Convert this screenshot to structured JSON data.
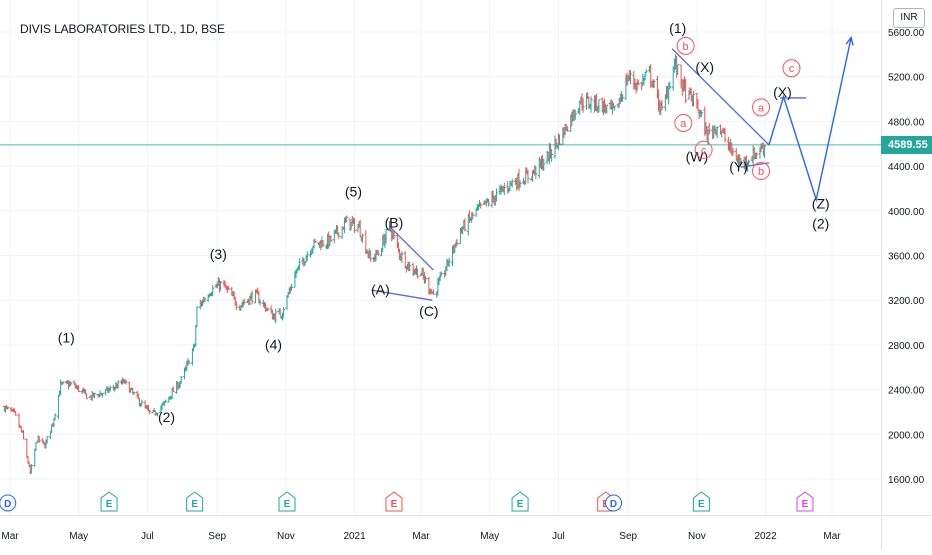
{
  "header": {
    "symbol_title": "DIVIS LABORATORIES LTD., 1D, BSE",
    "currency": "INR"
  },
  "colors": {
    "up": "#26a69a",
    "down": "#ef5350",
    "price_line": "#26a69a",
    "wave_black": "#131722",
    "wave_red": "#f7525f",
    "trendline": "#5b6ad0",
    "projection": "#2962ff",
    "grid": "#f0f3fa",
    "axis_text": "#131722"
  },
  "chart_data": {
    "type": "ohlc",
    "y_scale": "linear",
    "ylim": [
      1200,
      5800
    ],
    "y_ticks": [
      "1600.00",
      "2000.00",
      "2400.00",
      "2800.00",
      "3200.00",
      "3600.00",
      "4000.00",
      "4400.00",
      "4800.00",
      "5200.00",
      "5600.00"
    ],
    "x_ticks": [
      "Mar",
      "May",
      "Jul",
      "Sep",
      "Nov",
      "2021",
      "Mar",
      "May",
      "Jul",
      "Sep",
      "Nov",
      "2022",
      "Mar"
    ],
    "last_price": "4589.55",
    "price_anchors": [
      [
        "2020-02-25",
        2240
      ],
      [
        "2020-03-05",
        2180
      ],
      [
        "2020-03-12",
        2000
      ],
      [
        "2020-03-19",
        1650
      ],
      [
        "2020-03-25",
        1960
      ],
      [
        "2020-04-01",
        1900
      ],
      [
        "2020-04-08",
        2100
      ],
      [
        "2020-04-15",
        2440
      ],
      [
        "2020-04-25",
        2450
      ],
      [
        "2020-05-10",
        2330
      ],
      [
        "2020-05-25",
        2380
      ],
      [
        "2020-06-10",
        2470
      ],
      [
        "2020-06-25",
        2280
      ],
      [
        "2020-07-05",
        2170
      ],
      [
        "2020-07-15",
        2260
      ],
      [
        "2020-08-01",
        2500
      ],
      [
        "2020-08-12",
        2800
      ],
      [
        "2020-08-14",
        3120
      ],
      [
        "2020-08-25",
        3280
      ],
      [
        "2020-09-05",
        3350
      ],
      [
        "2020-09-20",
        3150
      ],
      [
        "2020-10-05",
        3250
      ],
      [
        "2020-10-20",
        3060
      ],
      [
        "2020-10-28",
        3080
      ],
      [
        "2020-11-10",
        3450
      ],
      [
        "2020-11-25",
        3700
      ],
      [
        "2020-12-10",
        3730
      ],
      [
        "2020-12-25",
        3900
      ],
      [
        "2021-01-05",
        3850
      ],
      [
        "2021-01-15",
        3560
      ],
      [
        "2021-01-22",
        3620
      ],
      [
        "2021-02-01",
        3860
      ],
      [
        "2021-02-10",
        3620
      ],
      [
        "2021-02-18",
        3500
      ],
      [
        "2021-03-01",
        3440
      ],
      [
        "2021-03-12",
        3250
      ],
      [
        "2021-03-22",
        3460
      ],
      [
        "2021-04-05",
        3820
      ],
      [
        "2021-04-20",
        4000
      ],
      [
        "2021-05-05",
        4120
      ],
      [
        "2021-05-20",
        4250
      ],
      [
        "2021-06-05",
        4310
      ],
      [
        "2021-06-20",
        4460
      ],
      [
        "2021-07-05",
        4700
      ],
      [
        "2021-07-20",
        4980
      ],
      [
        "2021-08-05",
        4960
      ],
      [
        "2021-08-20",
        4880
      ],
      [
        "2021-09-01",
        5200
      ],
      [
        "2021-09-10",
        5120
      ],
      [
        "2021-09-20",
        5230
      ],
      [
        "2021-10-01",
        4880
      ],
      [
        "2021-10-12",
        5320
      ],
      [
        "2021-10-22",
        5050
      ],
      [
        "2021-11-01",
        4950
      ],
      [
        "2021-11-10",
        4680
      ],
      [
        "2021-11-20",
        4770
      ],
      [
        "2021-11-30",
        4560
      ],
      [
        "2021-12-10",
        4420
      ],
      [
        "2021-12-20",
        4490
      ],
      [
        "2022-01-01",
        4590
      ]
    ],
    "annotations": {
      "black": [
        {
          "label": "(1)",
          "date": "2020-04-20",
          "price": 2820
        },
        {
          "label": "(2)",
          "date": "2020-07-18",
          "price": 2110
        },
        {
          "label": "(3)",
          "date": "2020-09-02",
          "price": 3570
        },
        {
          "label": "(4)",
          "date": "2020-10-21",
          "price": 2760
        },
        {
          "label": "(5)",
          "date": "2020-12-31",
          "price": 4130
        },
        {
          "label": "(B)",
          "date": "2021-02-05",
          "price": 3850
        },
        {
          "label": "(A)",
          "date": "2021-01-24",
          "price": 3250
        },
        {
          "label": "(C)",
          "date": "2021-03-08",
          "price": 3060
        },
        {
          "label": "(1)",
          "date": "2021-10-15",
          "price": 5590
        },
        {
          "label": "(X)",
          "date": "2021-11-08",
          "price": 5240
        },
        {
          "label": "(W)",
          "date": "2021-11-01",
          "price": 4440
        },
        {
          "label": "(Y)",
          "date": "2021-12-08",
          "price": 4350
        },
        {
          "label": "(X)",
          "date": "2022-01-16",
          "price": 5020
        },
        {
          "label": "(Z)",
          "date": "2022-02-19",
          "price": 4020
        },
        {
          "label": "(2)",
          "date": "2022-02-19",
          "price": 3840
        }
      ],
      "red": [
        {
          "label": "b",
          "date": "2021-10-22",
          "price": 5440
        },
        {
          "label": "a",
          "date": "2021-10-20",
          "price": 4750
        },
        {
          "label": "c",
          "date": "2021-11-07",
          "price": 4510
        },
        {
          "label": "a",
          "date": "2021-12-28",
          "price": 4890
        },
        {
          "label": "b",
          "date": "2021-12-28",
          "price": 4320
        },
        {
          "label": "c",
          "date": "2022-01-24",
          "price": 5240
        }
      ]
    },
    "trendlines": [
      {
        "from": [
          "2021-01-16",
          3290
        ],
        "to": [
          "2021-03-11",
          3200
        ]
      },
      {
        "from": [
          "2021-02-01",
          3860
        ],
        "to": [
          "2021-03-12",
          3470
        ]
      },
      {
        "from": [
          "2021-10-10",
          5450
        ],
        "to": [
          "2022-01-04",
          4590
        ]
      },
      {
        "from": [
          "2021-12-10",
          4390
        ],
        "to": [
          "2022-01-04",
          4430
        ]
      },
      {
        "from": [
          "2022-01-14",
          5010
        ],
        "to": [
          "2022-02-06",
          5010
        ]
      }
    ],
    "projection": [
      [
        "2022-01-04",
        4590
      ],
      [
        "2022-01-17",
        5020
      ],
      [
        "2022-02-15",
        4100
      ],
      [
        "2022-03-18",
        5550
      ]
    ],
    "event_markers": [
      {
        "letter": "D",
        "date": "2020-02-28",
        "kind": "dividend"
      },
      {
        "letter": "E",
        "date": "2020-05-28",
        "kind": "earnings-up"
      },
      {
        "letter": "E",
        "date": "2020-08-12",
        "kind": "earnings-up"
      },
      {
        "letter": "E",
        "date": "2020-11-02",
        "kind": "earnings-up"
      },
      {
        "letter": "E",
        "date": "2021-02-05",
        "kind": "earnings-down"
      },
      {
        "letter": "E",
        "date": "2021-05-28",
        "kind": "earnings-up"
      },
      {
        "letter": "E",
        "date": "2021-08-12",
        "kind": "earnings-down"
      },
      {
        "letter": "D",
        "date": "2021-08-19",
        "kind": "dividend"
      },
      {
        "letter": "E",
        "date": "2021-11-05",
        "kind": "earnings-up"
      },
      {
        "letter": "E",
        "date": "2022-02-05",
        "kind": "earnings-future"
      }
    ]
  }
}
